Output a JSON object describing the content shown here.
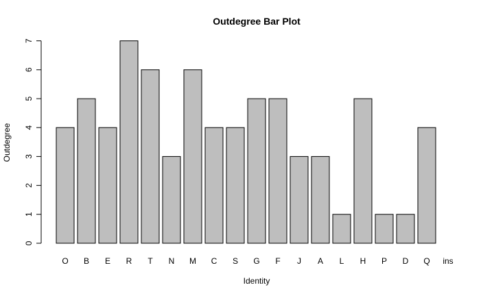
{
  "chart_data": {
    "type": "bar",
    "title": "Outdegree Bar Plot",
    "xlabel": "Identity",
    "ylabel": "Outdegree",
    "categories": [
      "O",
      "B",
      "E",
      "R",
      "T",
      "N",
      "M",
      "C",
      "S",
      "G",
      "F",
      "J",
      "A",
      "L",
      "H",
      "P",
      "D",
      "Q",
      "ins"
    ],
    "values": [
      4,
      5,
      4,
      7,
      6,
      3,
      6,
      4,
      4,
      5,
      5,
      3,
      3,
      1,
      5,
      1,
      1,
      4,
      0
    ],
    "yticks": [
      "0",
      "1",
      "2",
      "3",
      "4",
      "5",
      "6",
      "7"
    ],
    "ylim": [
      0,
      7
    ],
    "grid": false,
    "legend": "none",
    "colors": {
      "bar_fill": "#bebebe",
      "bar_stroke": "#000000"
    }
  }
}
